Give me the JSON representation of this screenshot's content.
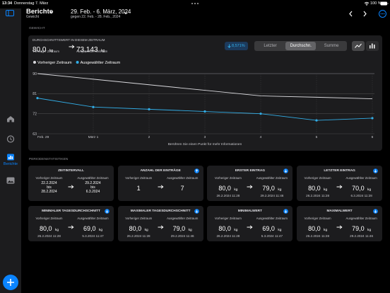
{
  "status": {
    "time": "13:34",
    "date": "Donnerstag 7. März",
    "battery": "100 %"
  },
  "sidebar": {
    "active": "Berichte"
  },
  "header": {
    "title": "Berichte",
    "subtitle": "Gewicht",
    "range": "29. Feb. - 6. März, 2024",
    "compare": "gegen 22. Feb. - 28. Feb., 2024"
  },
  "section": "GEWICHT",
  "summary": {
    "label": "DURCHSCHNITTSWERT IN DIESEM ZEITRAUM",
    "previous": {
      "value": "80,0",
      "unit": "kg",
      "caption": "Vorheriger Zeitraum"
    },
    "selected": {
      "value": "73,143",
      "unit": "kg",
      "caption": "Ausgewählter Zeitraum"
    },
    "change": "8,571%",
    "modes": [
      "Letzter",
      "Durchschn.",
      "Summe"
    ],
    "active_mode": 1,
    "hint": "Berühren Sie einen Punkt für mehr Informationen"
  },
  "chart_data": {
    "type": "line",
    "categories": [
      "Feb. 29",
      "März 1",
      "2",
      "3",
      "4",
      "5",
      "6"
    ],
    "series": [
      {
        "name": "Vorheriger Zeitraum",
        "color": "#d8d8dc",
        "values": [
          90,
          87.5,
          85,
          82.5,
          80,
          79.4,
          78.7
        ]
      },
      {
        "name": "Ausgewählter Zeitraum",
        "color": "#32ade6",
        "values": [
          79,
          75,
          74,
          73,
          72,
          69,
          70
        ]
      }
    ],
    "ylim": [
      63,
      90
    ],
    "yticks": [
      90,
      81,
      72,
      63
    ],
    "grid": true
  },
  "stats_title": "PERIODENSTATISTIKEN",
  "stats": [
    {
      "title": "ZEITINTERVALL",
      "previous": {
        "caption": "Vorheriger Zeitraum",
        "lines": [
          "22.2.2024",
          "bis",
          "28.2.2024"
        ]
      },
      "selected": {
        "caption": "Ausgewählter Zeitraum",
        "lines": [
          "29.2.2024",
          "bis",
          "6.3.2024"
        ]
      }
    },
    {
      "title": "ANZAHL DER EINTRÄGE",
      "previous": {
        "caption": "Vorheriger Zeitraum",
        "value": "1"
      },
      "selected": {
        "caption": "Ausgewählter Zeitraum",
        "value": "7"
      }
    },
    {
      "title": "ERSTER EINTRAG",
      "previous": {
        "caption": "Vorheriger Zeitraum",
        "value": "80,0",
        "unit": "kg",
        "date": "26.2.2024 11:28"
      },
      "selected": {
        "caption": "Ausgewählter Zeitraum",
        "value": "79,0",
        "unit": "kg",
        "date": "29.2.2024 11:46"
      }
    },
    {
      "title": "LETZTER EINTRAG",
      "previous": {
        "caption": "Vorheriger Zeitraum",
        "value": "80,0",
        "unit": "kg",
        "date": "26.2.2024 11:28"
      },
      "selected": {
        "caption": "Ausgewählter Zeitraum",
        "value": "70,0",
        "unit": "kg",
        "date": "6.3.2024 11:28"
      }
    },
    {
      "title": "MINIMALER TAGESDURCHSCHNITT",
      "previous": {
        "caption": "Vorheriger Zeitraum",
        "value": "80,0",
        "unit": "kg",
        "date": "26.2.2024 11:28"
      },
      "selected": {
        "caption": "Ausgewählter Zeitraum",
        "value": "69,0",
        "unit": "kg",
        "date": "5.3.2024 11:47"
      }
    },
    {
      "title": "MAXIMALER TAGESDURCHSCHNITT",
      "previous": {
        "caption": "Vorheriger Zeitraum",
        "value": "80,0",
        "unit": "kg",
        "date": "26.2.2024 11:28"
      },
      "selected": {
        "caption": "Ausgewählter Zeitraum",
        "value": "79,0",
        "unit": "kg",
        "date": "29.2.2024 11:46"
      }
    },
    {
      "title": "MINIMALWERT",
      "previous": {
        "caption": "Vorheriger Zeitraum",
        "value": "80,0",
        "unit": "kg",
        "date": "26.2.2024 11:28"
      },
      "selected": {
        "caption": "Ausgewählter Zeitraum",
        "value": "69,0",
        "unit": "kg",
        "date": "5.3.2024 11:47"
      }
    },
    {
      "title": "MAXIMALWERT",
      "previous": {
        "caption": "Vorheriger Zeitraum",
        "value": "80,0",
        "unit": "kg",
        "date": "26.2.2024 11:28"
      },
      "selected": {
        "caption": "Ausgewählter Zeitraum",
        "value": "79,0",
        "unit": "kg",
        "date": "29.2.2024 11:46"
      }
    }
  ]
}
